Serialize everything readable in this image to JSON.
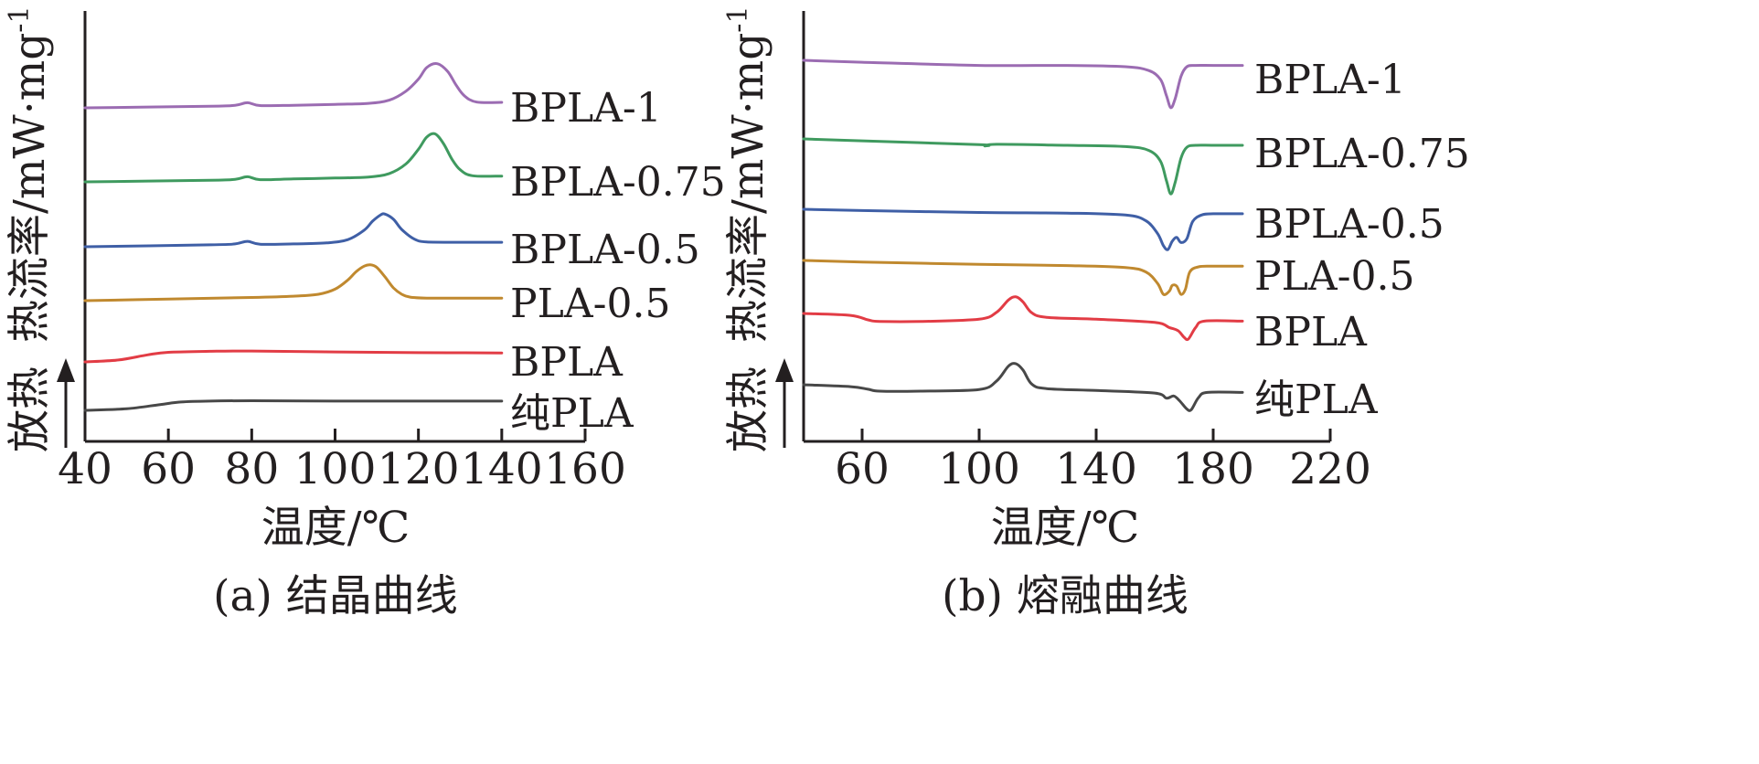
{
  "chart_data": [
    {
      "type": "line",
      "caption": "(a) 结晶曲线",
      "xlabel": "温度/℃",
      "ylabel": "热流率/mW·mg",
      "ylabel_sup": "-1",
      "direction_label": "放热",
      "xlim": [
        40,
        160
      ],
      "xticks": [
        "40",
        "60",
        "80",
        "100",
        "120",
        "140",
        "160"
      ],
      "grid": false,
      "series": [
        {
          "name": "BPLA-1",
          "color": "#9b6cb2",
          "x": [
            40,
            70,
            76,
            79,
            82,
            90,
            100,
            108,
            113,
            117,
            120,
            122,
            124.5,
            127,
            129,
            131,
            134,
            140
          ],
          "y": [
            0.0,
            0.25,
            0.4,
            0.8,
            0.35,
            0.4,
            0.55,
            0.7,
            1.2,
            2.6,
            4.5,
            6.3,
            6.9,
            5.7,
            3.6,
            1.9,
            0.9,
            0.85
          ]
        },
        {
          "name": "BPLA-0.75",
          "color": "#3f9a5f",
          "x": [
            40,
            70,
            76,
            79,
            82,
            90,
            100,
            108,
            113,
            117,
            120,
            122,
            124,
            126,
            128,
            130,
            133,
            140
          ],
          "y": [
            0.0,
            0.25,
            0.4,
            0.8,
            0.35,
            0.45,
            0.6,
            0.75,
            1.3,
            2.8,
            5.1,
            7.0,
            7.5,
            6.0,
            3.6,
            1.9,
            0.95,
            0.9
          ]
        },
        {
          "name": "BPLA-0.5",
          "color": "#3f5fa6",
          "x": [
            40,
            70,
            76,
            79,
            82,
            90,
            98,
            103,
            107,
            109,
            111,
            112,
            114,
            116,
            119,
            122,
            130,
            140
          ],
          "y": [
            0.0,
            0.3,
            0.45,
            0.85,
            0.4,
            0.45,
            0.6,
            1.1,
            2.6,
            4.0,
            5.0,
            5.1,
            4.3,
            2.7,
            1.2,
            0.75,
            0.7,
            0.7
          ]
        },
        {
          "name": "PLA-0.5",
          "color": "#c0892f",
          "x": [
            40,
            60,
            80,
            90,
            96,
            100,
            103,
            105,
            107,
            108.5,
            110,
            112,
            114,
            116,
            118,
            122,
            130,
            140
          ],
          "y": [
            0.0,
            0.25,
            0.5,
            0.7,
            1.0,
            1.8,
            3.2,
            4.5,
            5.4,
            5.6,
            5.2,
            3.7,
            2.0,
            1.0,
            0.55,
            0.4,
            0.4,
            0.4
          ]
        },
        {
          "name": "BPLA",
          "color": "#e23c45",
          "x": [
            40,
            48,
            55,
            60,
            70,
            80,
            100,
            120,
            140
          ],
          "y": [
            0.0,
            0.3,
            1.1,
            1.5,
            1.65,
            1.7,
            1.55,
            1.45,
            1.4
          ]
        },
        {
          "name": "纯PLA",
          "color": "#484848",
          "x": [
            40,
            50,
            58,
            63,
            70,
            80,
            100,
            120,
            140
          ],
          "y": [
            0.0,
            0.25,
            0.9,
            1.3,
            1.45,
            1.5,
            1.45,
            1.45,
            1.45
          ]
        }
      ]
    },
    {
      "type": "line",
      "caption": "(b) 熔融曲线",
      "xlabel": "温度/℃",
      "ylabel": "热流率/mW·mg",
      "ylabel_sup": "-1",
      "direction_label": "放热",
      "xlim": [
        40,
        220
      ],
      "xticks": [
        "60",
        "100",
        "140",
        "180",
        "220"
      ],
      "grid": false,
      "series": [
        {
          "name": "BPLA-1",
          "color": "#9b6cb2",
          "x": [
            40,
            60,
            100,
            130,
            150,
            158,
            162,
            164,
            165.5,
            167,
            169,
            171,
            174,
            180,
            190
          ],
          "y": [
            0.0,
            -0.3,
            -0.8,
            -0.8,
            -1.0,
            -1.6,
            -3.0,
            -5.5,
            -7.4,
            -6.0,
            -2.5,
            -1.0,
            -0.8,
            -0.8,
            -0.8
          ]
        },
        {
          "name": "BPLA-0.75",
          "color": "#3f9a5f",
          "x": [
            40,
            60,
            100,
            102,
            106,
            130,
            150,
            158,
            162,
            164,
            165.5,
            167,
            169,
            171,
            174,
            180,
            190
          ],
          "y": [
            0.0,
            -0.3,
            -0.9,
            -1.1,
            -0.85,
            -1.0,
            -1.2,
            -1.8,
            -3.5,
            -6.5,
            -8.6,
            -6.8,
            -3.0,
            -1.3,
            -1.0,
            -1.0,
            -1.0
          ]
        },
        {
          "name": "BPLA-0.5",
          "color": "#3f5fa6",
          "x": [
            40,
            60,
            100,
            130,
            150,
            157,
            161,
            163,
            164.5,
            166,
            167.5,
            169,
            171,
            173,
            176,
            180,
            190
          ],
          "y": [
            0.0,
            -0.2,
            -0.5,
            -0.6,
            -0.9,
            -1.8,
            -3.8,
            -5.7,
            -6.3,
            -5.0,
            -4.4,
            -5.2,
            -4.6,
            -1.9,
            -0.9,
            -0.7,
            -0.7
          ]
        },
        {
          "name": "PLA-0.5",
          "color": "#c0892f",
          "x": [
            40,
            60,
            100,
            130,
            150,
            157,
            161,
            163,
            165,
            166,
            167.5,
            169,
            170.5,
            172,
            175,
            180,
            190
          ],
          "y": [
            0.0,
            -0.25,
            -0.6,
            -0.8,
            -1.1,
            -1.8,
            -3.6,
            -5.3,
            -4.8,
            -3.9,
            -4.0,
            -5.3,
            -4.5,
            -1.8,
            -1.0,
            -0.9,
            -0.9
          ]
        },
        {
          "name": "BPLA",
          "color": "#e23c45",
          "x": [
            40,
            56,
            62,
            66,
            80,
            100,
            106,
            110,
            112.5,
            115,
            118,
            123,
            140,
            160,
            165,
            168,
            170,
            171.5,
            174,
            177,
            190
          ],
          "y": [
            0.0,
            -0.3,
            -1.0,
            -1.25,
            -1.25,
            -0.9,
            0.2,
            2.1,
            2.6,
            1.8,
            0.1,
            -0.6,
            -0.9,
            -1.4,
            -2.2,
            -2.7,
            -3.7,
            -4.0,
            -2.2,
            -1.2,
            -1.2
          ]
        },
        {
          "name": "纯PLA",
          "color": "#484848",
          "x": [
            40,
            56,
            62,
            66,
            80,
            100,
            106,
            110,
            112.5,
            115,
            118,
            123,
            140,
            160,
            164,
            166.5,
            168.5,
            171,
            172.5,
            175,
            178,
            190
          ],
          "y": [
            0.0,
            -0.3,
            -0.7,
            -1.0,
            -1.0,
            -0.75,
            0.6,
            2.9,
            3.3,
            2.3,
            0.1,
            -0.6,
            -0.9,
            -1.3,
            -2.1,
            -1.75,
            -2.5,
            -3.8,
            -3.9,
            -2.0,
            -1.2,
            -1.2
          ]
        }
      ]
    }
  ]
}
